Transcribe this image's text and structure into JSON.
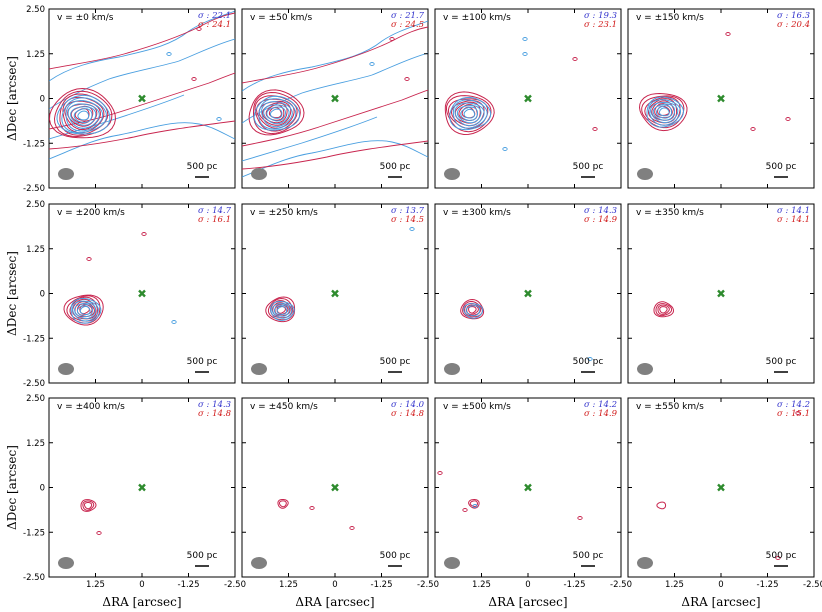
{
  "figure": {
    "xlabel": "ΔRA [arcsec]",
    "ylabel": "ΔDec [arcsec]",
    "xticks": [
      "1.25",
      "0",
      "-1.25",
      "-2.50"
    ],
    "yticks": [
      "2.50",
      "1.25",
      "0",
      "-1.25",
      "-2.50"
    ],
    "scalebar_label": "500 pc",
    "colors": {
      "blue_contour": "#4a9fe0",
      "red_contour": "#c8254e",
      "center_marker": "#2e8b2e",
      "beam": "#808080",
      "sigma_blue_text": "#3333cc",
      "sigma_red_text": "#d11a1a"
    }
  },
  "chart_data": [
    {
      "type": "contour",
      "title": "v = ±0 km/s",
      "sigma_blue": "σ : 22.1",
      "sigma_red": "σ : 24.1",
      "xlim": [
        2.5,
        -2.5
      ],
      "ylim": [
        -2.5,
        2.5
      ],
      "grid": false,
      "source_peak": [
        1.6,
        -0.45
      ],
      "center_marker": [
        0,
        0
      ]
    },
    {
      "type": "contour",
      "title": "v = ±50 km/s",
      "sigma_blue": "σ : 21.7",
      "sigma_red": "σ : 24.5",
      "xlim": [
        2.5,
        -2.5
      ],
      "ylim": [
        -2.5,
        2.5
      ],
      "grid": false,
      "source_peak": [
        1.6,
        -0.4
      ],
      "center_marker": [
        0,
        0
      ]
    },
    {
      "type": "contour",
      "title": "v = ±100 km/s",
      "sigma_blue": "σ : 19.3",
      "sigma_red": "σ : 23.1",
      "xlim": [
        2.5,
        -2.5
      ],
      "ylim": [
        -2.5,
        2.5
      ],
      "grid": false,
      "source_peak": [
        1.6,
        -0.4
      ],
      "center_marker": [
        0,
        0
      ]
    },
    {
      "type": "contour",
      "title": "v = ±150 km/s",
      "sigma_blue": "σ : 16.3",
      "sigma_red": "σ : 20.4",
      "xlim": [
        2.5,
        -2.5
      ],
      "ylim": [
        -2.5,
        2.5
      ],
      "grid": false,
      "source_peak": [
        1.55,
        -0.35
      ],
      "center_marker": [
        0,
        0
      ]
    },
    {
      "type": "contour",
      "title": "v = ±200 km/s",
      "sigma_blue": "σ : 14.7",
      "sigma_red": "σ : 16.1",
      "xlim": [
        2.5,
        -2.5
      ],
      "ylim": [
        -2.5,
        2.5
      ],
      "grid": false,
      "source_peak": [
        1.55,
        -0.45
      ],
      "center_marker": [
        0,
        0
      ]
    },
    {
      "type": "contour",
      "title": "v = ±250 km/s",
      "sigma_blue": "σ : 13.7",
      "sigma_red": "σ : 14.5",
      "xlim": [
        2.5,
        -2.5
      ],
      "ylim": [
        -2.5,
        2.5
      ],
      "grid": false,
      "source_peak": [
        1.45,
        -0.45
      ],
      "center_marker": [
        0,
        0
      ]
    },
    {
      "type": "contour",
      "title": "v = ±300 km/s",
      "sigma_blue": "σ : 14.3",
      "sigma_red": "σ : 14.9",
      "xlim": [
        2.5,
        -2.5
      ],
      "ylim": [
        -2.5,
        2.5
      ],
      "grid": false,
      "source_peak": [
        1.5,
        -0.45
      ],
      "center_marker": [
        0,
        0
      ]
    },
    {
      "type": "contour",
      "title": "v = ±350 km/s",
      "sigma_blue": "σ : 14.1",
      "sigma_red": "σ : 14.1",
      "xlim": [
        2.5,
        -2.5
      ],
      "ylim": [
        -2.5,
        2.5
      ],
      "grid": false,
      "source_peak": [
        1.55,
        -0.45
      ],
      "center_marker": [
        0,
        0
      ]
    },
    {
      "type": "contour",
      "title": "v = ±400 km/s",
      "sigma_blue": "σ : 14.3",
      "sigma_red": "σ : 14.8",
      "xlim": [
        2.5,
        -2.5
      ],
      "ylim": [
        -2.5,
        2.5
      ],
      "grid": false,
      "source_peak": [
        1.45,
        -0.5
      ],
      "center_marker": [
        0,
        0
      ]
    },
    {
      "type": "contour",
      "title": "v = ±450 km/s",
      "sigma_blue": "σ : 14.0",
      "sigma_red": "σ : 14.8",
      "xlim": [
        2.5,
        -2.5
      ],
      "ylim": [
        -2.5,
        2.5
      ],
      "grid": false,
      "source_peak": [
        1.4,
        -0.45
      ],
      "center_marker": [
        0,
        0
      ]
    },
    {
      "type": "contour",
      "title": "v = ±500 km/s",
      "sigma_blue": "σ : 14.2",
      "sigma_red": "σ : 14.9",
      "xlim": [
        2.5,
        -2.5
      ],
      "ylim": [
        -2.5,
        2.5
      ],
      "grid": false,
      "source_peak": [
        1.45,
        -0.45
      ],
      "center_marker": [
        0,
        0
      ]
    },
    {
      "type": "contour",
      "title": "v = ±550 km/s",
      "sigma_blue": "σ : 14.2",
      "sigma_red": "σ : 15.1",
      "xlim": [
        2.5,
        -2.5
      ],
      "ylim": [
        -2.5,
        2.5
      ],
      "grid": false,
      "source_peak": [
        1.6,
        -0.5
      ],
      "center_marker": [
        0,
        0
      ]
    }
  ]
}
